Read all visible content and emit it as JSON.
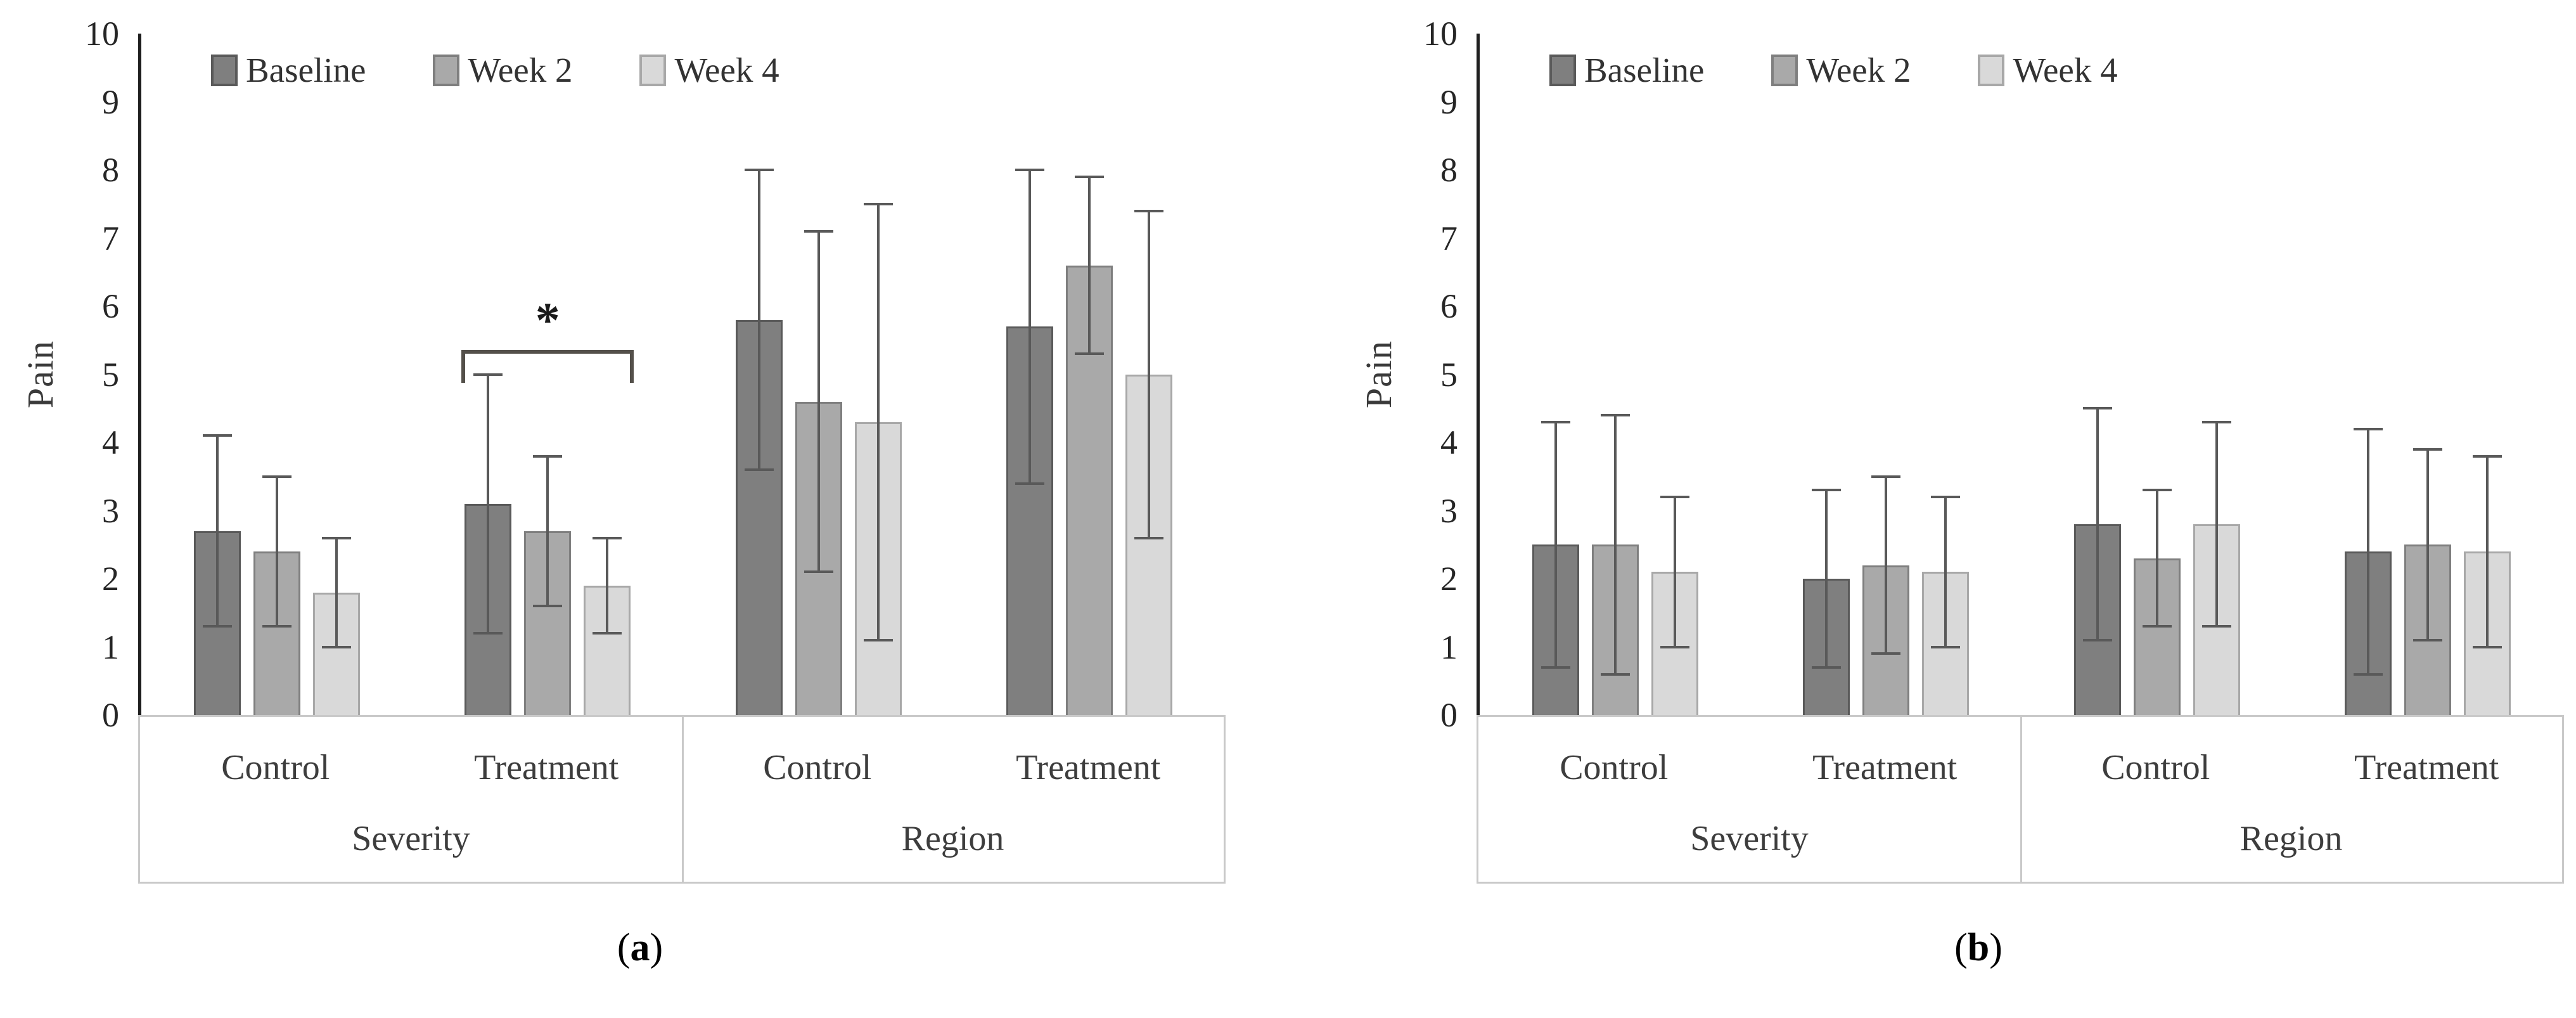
{
  "style_colors": {
    "error_bar": "#595959",
    "axis_line": "#1f1f1f",
    "category_box_border": "#c9c9c9",
    "significance_bracket": "#54504a",
    "text": "#3d3d3d"
  },
  "chart_data": [
    {
      "id": "a",
      "type": "bar",
      "caption": "(a)",
      "ylabel": "Pain",
      "ylim": [
        0,
        10
      ],
      "ytick_step": 1,
      "grid": false,
      "legend_position": "top-left-inside",
      "groups": [
        "Severity",
        "Region"
      ],
      "categories": [
        "Control",
        "Treatment"
      ],
      "series": [
        {
          "name": "Baseline",
          "fill": "#7f7f7f",
          "edge": "#5a5a5a",
          "values": [
            [
              2.7,
              3.1
            ],
            [
              5.8,
              5.7
            ]
          ],
          "err_low": [
            [
              1.3,
              1.2
            ],
            [
              3.6,
              3.4
            ]
          ],
          "err_high": [
            [
              4.1,
              5.0
            ],
            [
              8.0,
              8.0
            ]
          ]
        },
        {
          "name": "Week 2",
          "fill": "#a9a9a9",
          "edge": "#7f7f7f",
          "values": [
            [
              2.4,
              2.7
            ],
            [
              4.6,
              6.6
            ]
          ],
          "err_low": [
            [
              1.3,
              1.6
            ],
            [
              2.1,
              5.3
            ]
          ],
          "err_high": [
            [
              3.5,
              3.8
            ],
            [
              7.1,
              7.9
            ]
          ]
        },
        {
          "name": "Week 4",
          "fill": "#d9d9d9",
          "edge": "#a8a8a8",
          "values": [
            [
              1.8,
              1.9
            ],
            [
              4.3,
              5.0
            ]
          ],
          "err_low": [
            [
              1.0,
              1.2
            ],
            [
              1.1,
              2.6
            ]
          ],
          "err_high": [
            [
              2.6,
              2.6
            ],
            [
              7.5,
              7.4
            ]
          ]
        }
      ],
      "significance": {
        "group_index": 0,
        "category_index": 1,
        "label": "*",
        "bracket_y": 5.3,
        "bracket_drop_to": 4.87
      }
    },
    {
      "id": "b",
      "type": "bar",
      "caption": "(b)",
      "ylabel": "Pain",
      "ylim": [
        0,
        10
      ],
      "ytick_step": 1,
      "grid": false,
      "legend_position": "top-left-inside",
      "groups": [
        "Severity",
        "Region"
      ],
      "categories": [
        "Control",
        "Treatment"
      ],
      "series": [
        {
          "name": "Baseline",
          "fill": "#7f7f7f",
          "edge": "#5a5a5a",
          "values": [
            [
              2.5,
              2.0
            ],
            [
              2.8,
              2.4
            ]
          ],
          "err_low": [
            [
              0.7,
              0.7
            ],
            [
              1.1,
              0.6
            ]
          ],
          "err_high": [
            [
              4.3,
              3.3
            ],
            [
              4.5,
              4.2
            ]
          ]
        },
        {
          "name": "Week 2",
          "fill": "#a9a9a9",
          "edge": "#7f7f7f",
          "values": [
            [
              2.5,
              2.2
            ],
            [
              2.3,
              2.5
            ]
          ],
          "err_low": [
            [
              0.6,
              0.9
            ],
            [
              1.3,
              1.1
            ]
          ],
          "err_high": [
            [
              4.4,
              3.5
            ],
            [
              3.3,
              3.9
            ]
          ]
        },
        {
          "name": "Week 4",
          "fill": "#d9d9d9",
          "edge": "#a8a8a8",
          "values": [
            [
              2.1,
              2.1
            ],
            [
              2.8,
              2.4
            ]
          ],
          "err_low": [
            [
              1.0,
              1.0
            ],
            [
              1.3,
              1.0
            ]
          ],
          "err_high": [
            [
              3.2,
              3.2
            ],
            [
              4.3,
              3.8
            ]
          ]
        }
      ],
      "significance": null
    }
  ]
}
